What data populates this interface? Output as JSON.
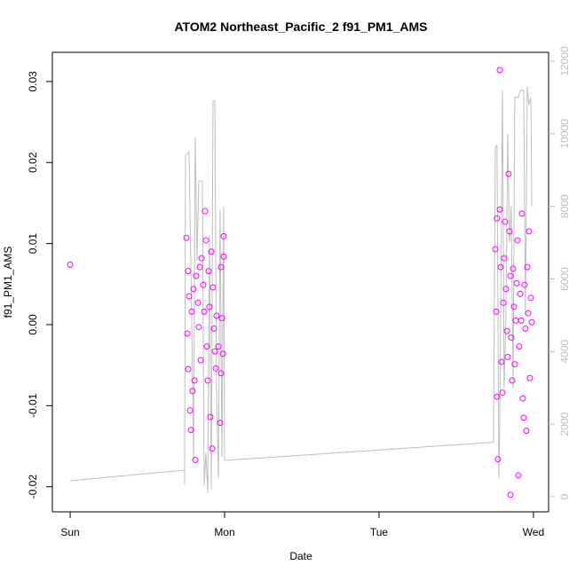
{
  "chart_data": {
    "type": "scatter",
    "title": "ATOM2 Northeast_Pacific_2 f91_PM1_AMS",
    "xlabel": "Date",
    "ylabel": "f91_PM1_AMS",
    "xlim": [
      -0.115,
      3.098
    ],
    "xticks": [
      {
        "value": 0,
        "label": "Sun"
      },
      {
        "value": 1,
        "label": "Mon"
      },
      {
        "value": 2,
        "label": "Tue"
      },
      {
        "value": 3,
        "label": "Wed"
      }
    ],
    "ylim": [
      -0.0231,
      0.0336
    ],
    "yticks": [
      -0.02,
      -0.01,
      {
        "value": 0,
        "label": "0.00"
      },
      0.01,
      0.02,
      0.03
    ],
    "y2lim": [
      -416,
      12244
    ],
    "y2ticks": [
      0,
      2000,
      4000,
      6000,
      8000,
      10000,
      12000
    ],
    "y2color": "#bebebe",
    "series": [
      {
        "type": "scatter",
        "color": "#ff00ff",
        "x": [
          0,
          0.753,
          0.764,
          0.77,
          0.759,
          0.764,
          0.776,
          0.782,
          0.793,
          0.805,
          0.81,
          0.787,
          0.799,
          0.816,
          0.828,
          0.833,
          0.839,
          0.845,
          0.851,
          0.862,
          0.868,
          0.874,
          0.879,
          0.885,
          0.891,
          0.897,
          0.902,
          0.908,
          0.914,
          0.92,
          0.925,
          0.931,
          0.937,
          0.943,
          0.948,
          0.96,
          0.971,
          0.977,
          0.983,
          0.989,
          0.994,
          0.994,
          0.977,
          2.764,
          2.753,
          2.759,
          2.764,
          2.77,
          2.782,
          2.782,
          2.787,
          2.793,
          2.799,
          2.805,
          2.81,
          2.816,
          2.822,
          2.828,
          2.833,
          2.839,
          2.845,
          2.851,
          2.856,
          2.862,
          2.868,
          2.874,
          2.879,
          2.885,
          2.891,
          2.897,
          2.902,
          2.908,
          2.914,
          2.92,
          2.925,
          2.931,
          2.937,
          2.943,
          2.948,
          2.954,
          2.96,
          2.966,
          2.971,
          2.977,
          2.983,
          2.989,
          2.851
        ],
        "values": [
          0.0074,
          0.0107,
          0.0066,
          0.0035,
          -0.0011,
          -0.0055,
          -0.0106,
          -0.013,
          -0.0082,
          -0.0069,
          -0.0167,
          0.0016,
          0.0044,
          0.006,
          0.0027,
          -0.0003,
          0.0071,
          -0.0044,
          0.0082,
          0.0049,
          0.0016,
          0.014,
          0.0104,
          -0.0027,
          -0.0069,
          0.0066,
          0.0022,
          -0.0114,
          0.009,
          -0.0153,
          0.0046,
          -0.0005,
          -0.0033,
          -0.0054,
          0.0011,
          -0.0027,
          -0.0121,
          -0.006,
          0.0008,
          -0.0036,
          0.0084,
          0.0109,
          0.0071,
          0.0131,
          0.0093,
          0.0016,
          -0.0089,
          -0.0166,
          0.0314,
          0.0142,
          0.0071,
          -0.0046,
          -0.0084,
          0.0027,
          0.0082,
          0.0127,
          0.0044,
          -0.0008,
          -0.004,
          0.0186,
          0.0115,
          0.006,
          -0.0016,
          -0.0069,
          0.0069,
          0.0022,
          -0.0049,
          0.0005,
          0.0051,
          0.0104,
          -0.0186,
          -0.0027,
          0.0038,
          0.0005,
          0.0137,
          -0.0091,
          -0.0115,
          0.0049,
          -0.0005,
          -0.0131,
          0.0071,
          0.0014,
          0.0115,
          -0.0066,
          0.0033,
          0.0003,
          -0.021
        ]
      },
      {
        "type": "line",
        "color": "#bebebe",
        "axis": "y2",
        "x": [
          0,
          0.741,
          0.741,
          0.747,
          0.77,
          0.787,
          0.799,
          0.81,
          0.822,
          0.833,
          0.856,
          0.868,
          0.879,
          0.891,
          0.902,
          0.914,
          0.925,
          0.937,
          0.948,
          0.96,
          0.971,
          0.983,
          0.994,
          1.0,
          2.741,
          2.753,
          2.764,
          2.776,
          2.782,
          2.799,
          2.81,
          2.822,
          2.833,
          2.845,
          2.856,
          2.868,
          2.879,
          2.902,
          2.914,
          2.937,
          2.948,
          2.96,
          2.971,
          2.983,
          2.989
        ],
        "values": [
          440,
          733,
          320,
          9400,
          9500,
          5000,
          1000,
          9900,
          6500,
          8700,
          8700,
          300,
          1200,
          100,
          7200,
          200,
          10900,
          10900,
          3000,
          500,
          7900,
          1100,
          8000,
          1000,
          1500,
          9600,
          9700,
          500,
          2000,
          11200,
          3000,
          5000,
          10000,
          7000,
          8000,
          3000,
          11000,
          11000,
          11200,
          11200,
          5000,
          11300,
          10800,
          11000,
          8000
        ]
      }
    ]
  }
}
